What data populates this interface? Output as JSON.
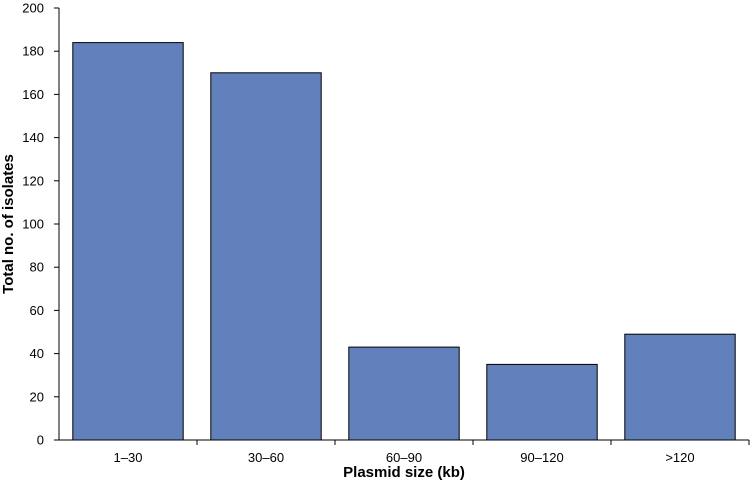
{
  "chart_data": {
    "type": "bar",
    "title": "",
    "xlabel": "Plasmid size (kb)",
    "ylabel": "Total no. of isolates",
    "categories": [
      "1–30",
      "30–60",
      "60–90",
      "90–120",
      ">120"
    ],
    "values": [
      184,
      170,
      43,
      35,
      49
    ],
    "ylim": [
      0,
      200
    ],
    "yticks": [
      0,
      20,
      40,
      60,
      80,
      100,
      120,
      140,
      160,
      180,
      200
    ],
    "grid": false,
    "legend": "none",
    "bar_color": "#6280bb",
    "bar_edge_color": "#000000"
  }
}
